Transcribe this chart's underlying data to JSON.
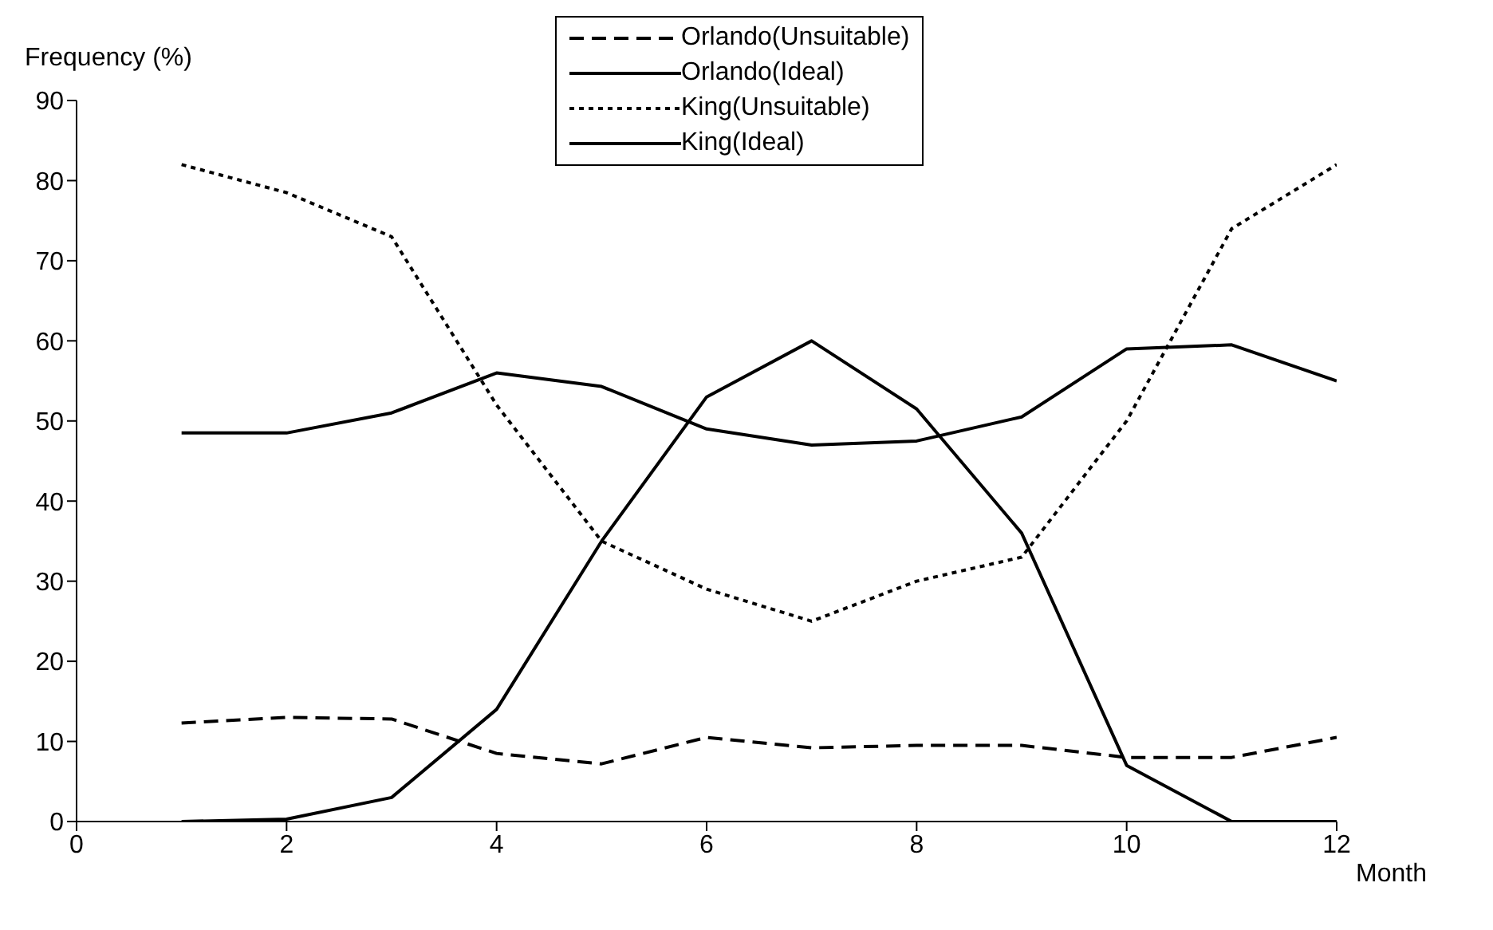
{
  "chart_data": {
    "type": "line",
    "xlabel": "Month",
    "ylabel": "Frequency (%)",
    "x": [
      1,
      2,
      3,
      4,
      5,
      6,
      7,
      8,
      9,
      10,
      11,
      12
    ],
    "xlim": [
      0,
      12
    ],
    "xticks": [
      0,
      2,
      4,
      6,
      8,
      10,
      12
    ],
    "ylim": [
      0,
      90
    ],
    "yticks": [
      0,
      10,
      20,
      30,
      40,
      50,
      60,
      70,
      80,
      90
    ],
    "grid": false,
    "legend": "top",
    "marker": "none",
    "series": [
      {
        "name": "Orlando(Unsuitable)",
        "color": "#000000",
        "line_style": "dashed",
        "values": [
          12.3,
          13,
          12.8,
          8.5,
          7.2,
          10.5,
          9.2,
          9.5,
          9.5,
          8,
          8,
          10.5
        ]
      },
      {
        "name": "Orlando(Ideal)",
        "color": "#000000",
        "line_style": "solid",
        "values": [
          48.5,
          48.5,
          51,
          56,
          54.3,
          49,
          47,
          47.5,
          50.5,
          59,
          59.5,
          55
        ]
      },
      {
        "name": "King(Unsuitable)",
        "color": "#000000",
        "line_style": "dotted",
        "values": [
          82,
          78.5,
          73,
          52,
          35,
          29,
          25,
          30,
          33,
          50,
          74,
          82
        ]
      },
      {
        "name": "King(Ideal)",
        "color": "#000000",
        "line_style": "solid",
        "values": [
          0,
          0.3,
          3,
          14,
          35,
          53,
          60,
          51.5,
          36,
          7,
          0,
          0
        ]
      }
    ]
  }
}
